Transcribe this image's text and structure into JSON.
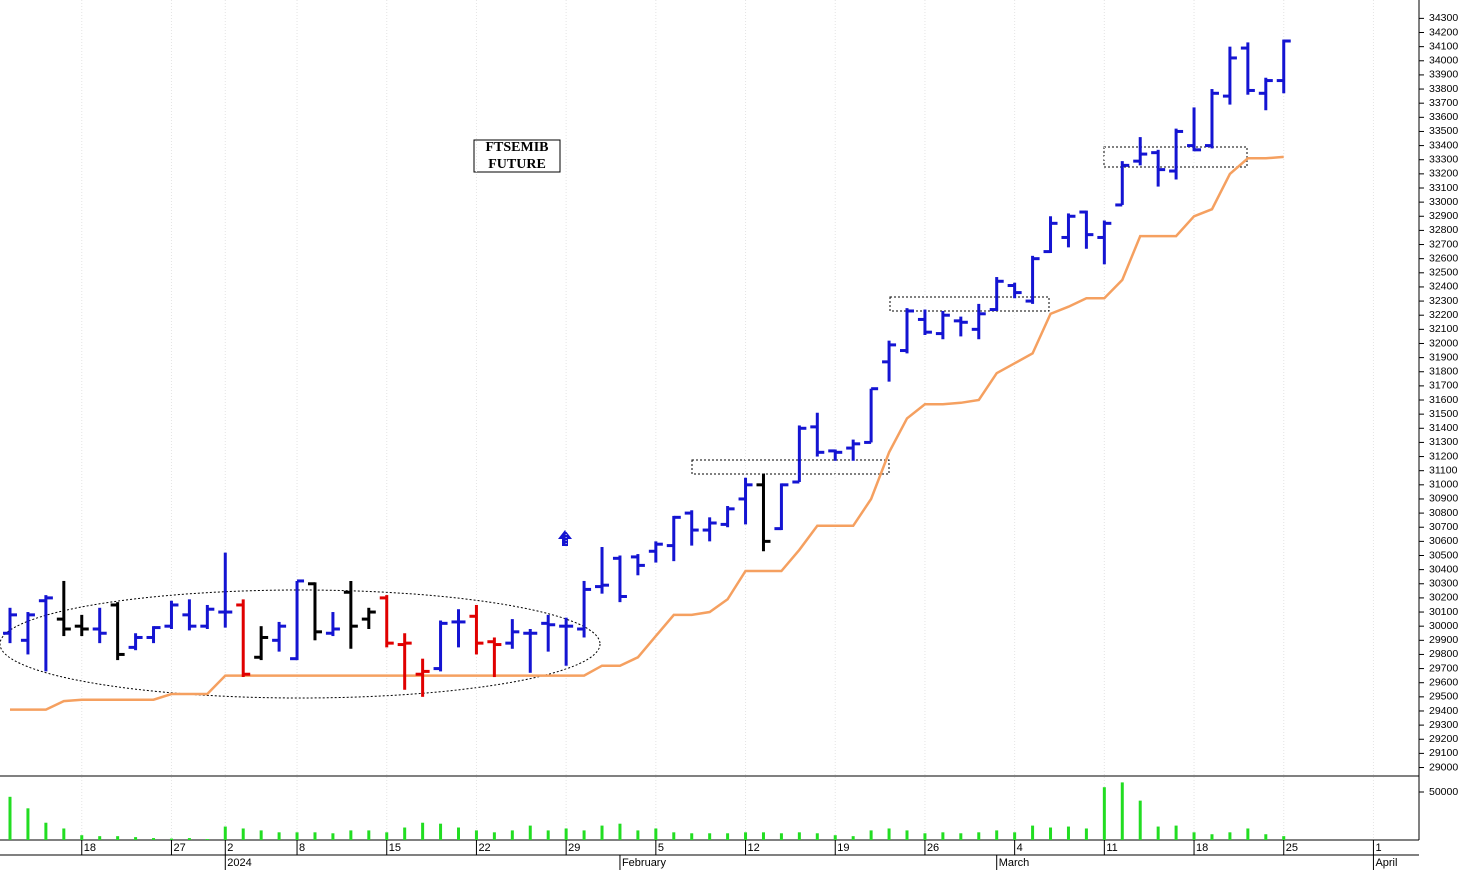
{
  "chart_data": {
    "type": "ohlc",
    "title_lines": [
      "FTSEMIB",
      "FUTURE"
    ],
    "categories": [
      null,
      null,
      null,
      null,
      "18",
      null,
      null,
      null,
      null,
      "27",
      null,
      null,
      "2",
      null,
      null,
      null,
      "8",
      null,
      null,
      null,
      null,
      "15",
      null,
      null,
      null,
      null,
      "22",
      null,
      null,
      null,
      null,
      "29",
      null,
      null,
      null,
      null,
      "5",
      null,
      null,
      null,
      null,
      "12",
      null,
      null,
      null,
      null,
      "19",
      null,
      null,
      null,
      null,
      "26",
      null,
      null,
      null,
      null,
      "4",
      null,
      null,
      null,
      null,
      "11",
      null,
      null,
      null,
      null,
      "18",
      null,
      null,
      null,
      null,
      "25",
      null,
      null,
      null,
      null,
      "1"
    ],
    "months": [
      null,
      null,
      null,
      null,
      null,
      null,
      null,
      null,
      null,
      null,
      null,
      null,
      "2024",
      null,
      null,
      null,
      null,
      null,
      null,
      null,
      null,
      null,
      null,
      null,
      null,
      null,
      null,
      null,
      null,
      null,
      null,
      null,
      null,
      null,
      "February",
      null,
      null,
      null,
      null,
      null,
      null,
      null,
      null,
      null,
      null,
      null,
      null,
      null,
      null,
      null,
      null,
      null,
      null,
      null,
      null,
      "March",
      null,
      null,
      null,
      null,
      null,
      null,
      null,
      null,
      null,
      null,
      null,
      null,
      null,
      null,
      null,
      null,
      null,
      null,
      null,
      null,
      "April"
    ],
    "ohlc": {
      "open": [
        29950,
        29900,
        30180,
        30050,
        30000,
        29980,
        30150,
        29850,
        29920,
        30000,
        30080,
        30000,
        30100,
        30150,
        29780,
        29900,
        29770,
        30300,
        29950,
        30240,
        30050,
        30200,
        29870,
        29660,
        29700,
        30030,
        30070,
        29890,
        29880,
        29950,
        30020,
        30000,
        29980,
        30280,
        30480,
        30490,
        30530,
        30570,
        30800,
        30680,
        30720,
        30900,
        31000,
        30690,
        31020,
        31410,
        31240,
        31260,
        31300,
        31870,
        31950,
        32170,
        32070,
        32160,
        32100,
        32240,
        32410,
        32300,
        32650,
        32750,
        32930,
        32750,
        32980,
        33290,
        33350,
        33220,
        33400,
        33400,
        33750,
        34090,
        33770,
        33860,
        null,
        null,
        null,
        null,
        null
      ],
      "high": [
        30130,
        30100,
        30220,
        30320,
        30080,
        30130,
        30170,
        29950,
        30000,
        30180,
        30190,
        30150,
        30520,
        30190,
        30000,
        30030,
        30320,
        30310,
        30100,
        30320,
        30130,
        30220,
        29950,
        29770,
        30040,
        30120,
        30150,
        29920,
        30050,
        29980,
        30080,
        30060,
        30320,
        30560,
        30500,
        30510,
        30600,
        30780,
        30820,
        30770,
        30850,
        31050,
        31080,
        31010,
        31420,
        31510,
        31250,
        31320,
        31680,
        32020,
        32250,
        32240,
        32230,
        32190,
        32280,
        32470,
        32430,
        32620,
        32900,
        32920,
        32940,
        32870,
        33290,
        33460,
        33370,
        33520,
        33670,
        33800,
        34100,
        34130,
        33880,
        34150,
        null,
        null,
        null,
        null,
        null
      ],
      "low": [
        29880,
        29800,
        29680,
        29930,
        29930,
        29880,
        29760,
        29830,
        29880,
        29980,
        29970,
        29980,
        29990,
        29640,
        29760,
        29820,
        29760,
        29900,
        29930,
        29840,
        29980,
        29850,
        29550,
        29500,
        29680,
        29850,
        29800,
        29640,
        29840,
        29670,
        29820,
        29720,
        29920,
        30230,
        30170,
        30360,
        30450,
        30460,
        30570,
        30600,
        30700,
        30720,
        30530,
        30680,
        31020,
        31200,
        31170,
        31170,
        31300,
        31730,
        31930,
        32060,
        32030,
        32050,
        32030,
        32230,
        32320,
        32280,
        32640,
        32680,
        32670,
        32560,
        32980,
        33260,
        33110,
        33160,
        33360,
        33380,
        33690,
        33760,
        33650,
        33770,
        null,
        null,
        null,
        null,
        null
      ],
      "close": [
        30080,
        30080,
        30200,
        29980,
        29980,
        29950,
        29800,
        29920,
        29990,
        30150,
        30000,
        30120,
        30100,
        29660,
        29920,
        30000,
        30320,
        29960,
        29980,
        30000,
        30100,
        29880,
        29880,
        29680,
        30020,
        30030,
        29880,
        29870,
        29960,
        29950,
        30010,
        30000,
        30260,
        30290,
        30210,
        30430,
        30580,
        30770,
        30680,
        30730,
        30830,
        31000,
        30600,
        31000,
        31400,
        31230,
        31230,
        31290,
        31680,
        31990,
        32230,
        32080,
        32200,
        32150,
        32210,
        32440,
        32360,
        32600,
        32850,
        32900,
        32770,
        32850,
        33260,
        33340,
        33230,
        33500,
        33370,
        33770,
        34020,
        33790,
        33860,
        34140,
        null,
        null,
        null,
        null,
        null
      ],
      "colors": [
        "#1414d2",
        "#1414d2",
        "#1414d2",
        "#000000",
        "#000000",
        "#1414d2",
        "#000000",
        "#1414d2",
        "#1414d2",
        "#1414d2",
        "#1414d2",
        "#1414d2",
        "#1414d2",
        "#e00000",
        "#000000",
        "#1414d2",
        "#1414d2",
        "#000000",
        "#1414d2",
        "#000000",
        "#000000",
        "#e00000",
        "#e00000",
        "#e00000",
        "#1414d2",
        "#1414d2",
        "#e00000",
        "#e00000",
        "#1414d2",
        "#1414d2",
        "#1414d2",
        "#1414d2",
        "#1414d2",
        "#1414d2",
        "#1414d2",
        "#1414d2",
        "#1414d2",
        "#1414d2",
        "#1414d2",
        "#1414d2",
        "#1414d2",
        "#1414d2",
        "#000000",
        "#1414d2",
        "#1414d2",
        "#1414d2",
        "#1414d2",
        "#1414d2",
        "#1414d2",
        "#1414d2",
        "#1414d2",
        "#1414d2",
        "#1414d2",
        "#1414d2",
        "#1414d2",
        "#1414d2",
        "#1414d2",
        "#1414d2",
        "#1414d2",
        "#1414d2",
        "#1414d2",
        "#1414d2",
        "#1414d2",
        "#1414d2",
        "#1414d2",
        "#1414d2",
        "#1414d2",
        "#1414d2",
        "#1414d2",
        "#1414d2",
        "#1414d2",
        "#1414d2",
        null,
        null,
        null,
        null,
        null
      ]
    },
    "moving_average": {
      "color": "#f5a060",
      "values": [
        29410,
        29410,
        29410,
        29470,
        29480,
        29480,
        29480,
        29480,
        29480,
        29520,
        29520,
        29520,
        29650,
        29650,
        29650,
        29650,
        29650,
        29650,
        29650,
        29650,
        29650,
        29650,
        29650,
        29650,
        29650,
        29650,
        29650,
        29650,
        29650,
        29650,
        29650,
        29650,
        29650,
        29720,
        29720,
        29780,
        29930,
        30080,
        30080,
        30100,
        30190,
        30390,
        30390,
        30390,
        30540,
        30710,
        30710,
        30710,
        30900,
        31230,
        31470,
        31570,
        31570,
        31580,
        31600,
        31790,
        31860,
        31930,
        32210,
        32260,
        32320,
        32320,
        32450,
        32760,
        32760,
        32760,
        32900,
        32950,
        33200,
        33310,
        33310,
        33320,
        null,
        null,
        null,
        null,
        null
      ]
    },
    "volume": {
      "color": "#22dd22",
      "ylim": [
        0,
        66670
      ],
      "yticks": [
        50000
      ],
      "values": [
        45000,
        33000,
        18000,
        12000,
        5000,
        4000,
        4000,
        3000,
        2000,
        1500,
        2000,
        1000,
        14000,
        12000,
        10000,
        8000,
        8000,
        8000,
        7000,
        10000,
        10000,
        8000,
        13000,
        18000,
        17000,
        13000,
        10000,
        8000,
        10000,
        15000,
        10000,
        12000,
        10000,
        15000,
        17000,
        10000,
        12000,
        8000,
        7000,
        7000,
        7000,
        8000,
        8000,
        7000,
        8000,
        7000,
        5000,
        4000,
        10000,
        12000,
        10000,
        7000,
        8000,
        7000,
        8000,
        10000,
        8000,
        15000,
        13000,
        14000,
        12000,
        55000,
        60000,
        41000,
        14000,
        15000,
        8000,
        6000,
        8000,
        12000,
        6000,
        4000,
        null,
        null,
        null,
        null,
        null
      ]
    },
    "ylim": [
      28940,
      34430
    ],
    "yticks": [
      29000,
      29100,
      29200,
      29300,
      29400,
      29500,
      29600,
      29700,
      29800,
      29900,
      30000,
      30100,
      30200,
      30300,
      30400,
      30500,
      30600,
      30700,
      30800,
      30900,
      31000,
      31100,
      31200,
      31300,
      31400,
      31500,
      31600,
      31700,
      31800,
      31900,
      32000,
      32100,
      32200,
      32300,
      32400,
      32500,
      32600,
      32700,
      32800,
      32900,
      33000,
      33100,
      33200,
      33300,
      33400,
      33500,
      33600,
      33700,
      33800,
      33900,
      34000,
      34100,
      34200,
      34300
    ]
  }
}
